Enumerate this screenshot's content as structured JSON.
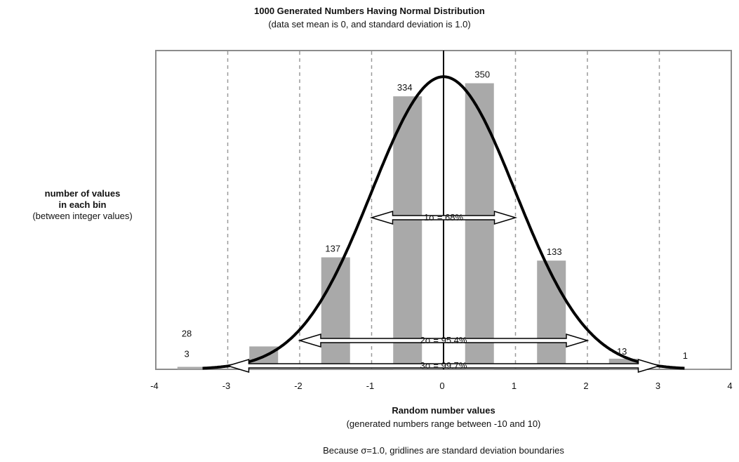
{
  "chart_data": {
    "type": "bar",
    "title": "1000 Generated Numbers Having Normal Distribution",
    "subtitle": "(data set mean is 0, and standard deviation is 1.0)",
    "ylabel_lines": [
      "number of values",
      "in each bin",
      "(between integer values)"
    ],
    "xlabel": "Random number values",
    "xlabel_sub": "(generated numbers range between -10 and 10)",
    "footnote": "Because σ=1.0, gridlines are standard deviation boundaries",
    "xlim": [
      -4,
      4
    ],
    "ylim": [
      0,
      390
    ],
    "xticks": [
      "-4",
      "-3",
      "-2",
      "-1",
      "0",
      "1",
      "2",
      "3",
      "4"
    ],
    "grid": true,
    "bins": [
      {
        "range": [
          -4,
          -3
        ],
        "value": 3
      },
      {
        "range": [
          -3,
          -2
        ],
        "value": 28
      },
      {
        "range": [
          -2,
          -1
        ],
        "value": 137
      },
      {
        "range": [
          -1,
          0
        ],
        "value": 334
      },
      {
        "range": [
          0,
          1
        ],
        "value": 350
      },
      {
        "range": [
          1,
          2
        ],
        "value": 133
      },
      {
        "range": [
          2,
          3
        ],
        "value": 13
      },
      {
        "range": [
          3,
          4
        ],
        "value": 1
      }
    ],
    "bar_color": "#a9a9a9",
    "curve": {
      "mean": 0,
      "sd": 1.0,
      "peak_value": 358
    },
    "sigma_ranges": [
      {
        "label": "1σ = 68%",
        "from": -1,
        "to": 1
      },
      {
        "label": "2σ = 95.4%",
        "from": -2,
        "to": 2
      },
      {
        "label": "3σ = 99.7%",
        "from": -3,
        "to": 3
      }
    ]
  }
}
